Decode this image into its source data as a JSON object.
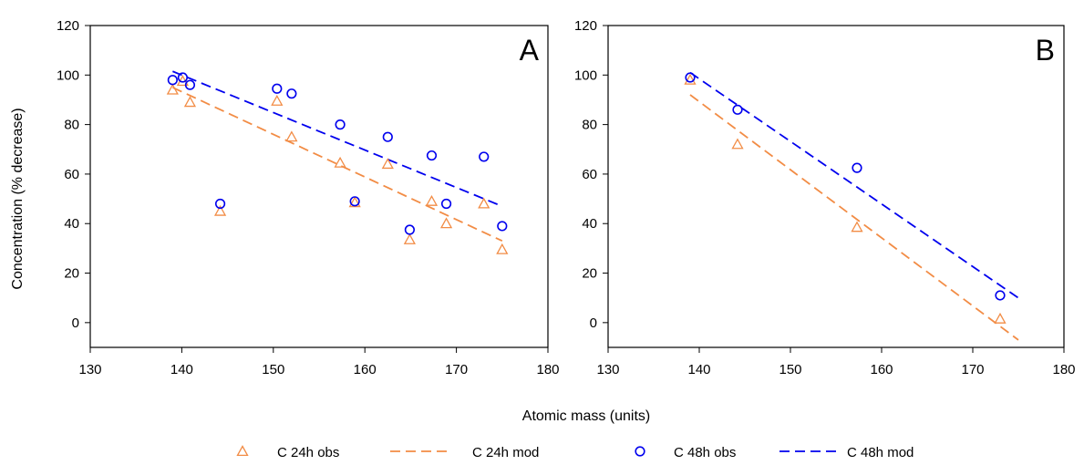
{
  "chart_data": [
    {
      "type": "scatter",
      "panel_label": "A",
      "xlim": [
        130,
        180
      ],
      "ylim": [
        -10,
        120
      ],
      "xticks": [
        130,
        140,
        150,
        160,
        170,
        180
      ],
      "yticks": [
        0,
        20,
        40,
        60,
        80,
        100,
        120
      ],
      "ylabel": "Concentration (% decrease)",
      "series": [
        {
          "name": "C 24h obs",
          "kind": "points",
          "marker": "triangle",
          "color": "#F28C45",
          "x": [
            139,
            140.1,
            140.9,
            144.2,
            150.4,
            152,
            157.3,
            158.9,
            162.5,
            164.9,
            167.3,
            168.9,
            173,
            175
          ],
          "y": [
            94,
            97.5,
            89,
            45,
            89.5,
            75,
            64.5,
            48.5,
            64,
            33.5,
            49,
            40,
            48,
            29.5
          ]
        },
        {
          "name": "C 24h mod",
          "kind": "line",
          "dash": "long",
          "color": "#F28C45",
          "x": [
            139,
            175
          ],
          "y": [
            95,
            33
          ]
        },
        {
          "name": "C 48h obs",
          "kind": "points",
          "marker": "circle",
          "color": "#0000EE",
          "x": [
            139,
            140.1,
            140.9,
            144.2,
            150.4,
            152,
            157.3,
            158.9,
            162.5,
            164.9,
            167.3,
            168.9,
            173,
            175
          ],
          "y": [
            98,
            99,
            96,
            48,
            94.5,
            92.5,
            80,
            49,
            75,
            37.5,
            67.5,
            48,
            67,
            39
          ]
        },
        {
          "name": "C 48h mod",
          "kind": "line",
          "dash": "long",
          "color": "#0000EE",
          "x": [
            139,
            175
          ],
          "y": [
            101.5,
            47
          ]
        }
      ]
    },
    {
      "type": "scatter",
      "panel_label": "B",
      "xlim": [
        130,
        180
      ],
      "ylim": [
        -10,
        120
      ],
      "xticks": [
        130,
        140,
        150,
        160,
        170,
        180
      ],
      "yticks": [
        0,
        20,
        40,
        60,
        80,
        100,
        120
      ],
      "series": [
        {
          "name": "C 24h obs",
          "kind": "points",
          "marker": "triangle",
          "color": "#F28C45",
          "x": [
            139,
            144.2,
            157.3,
            173
          ],
          "y": [
            98,
            72,
            38.5,
            1.5
          ]
        },
        {
          "name": "C 24h mod",
          "kind": "line",
          "dash": "long",
          "color": "#F28C45",
          "x": [
            139,
            175
          ],
          "y": [
            92,
            -7
          ]
        },
        {
          "name": "C 48h obs",
          "kind": "points",
          "marker": "circle",
          "color": "#0000EE",
          "x": [
            139,
            144.2,
            157.3,
            173
          ],
          "y": [
            99,
            86,
            62.5,
            11
          ]
        },
        {
          "name": "C 48h mod",
          "kind": "line",
          "dash": "long",
          "color": "#0000EE",
          "x": [
            139,
            175
          ],
          "y": [
            101,
            10
          ]
        }
      ]
    }
  ],
  "shared": {
    "xlabel": "Atomic mass (units)"
  },
  "legend": {
    "position": "bottom-center",
    "items": [
      {
        "label": "C 24h obs",
        "symbol": "triangle",
        "color": "#F28C45"
      },
      {
        "label": "C 24h mod",
        "symbol": "dashed-line",
        "color": "#F28C45"
      },
      {
        "label": "C 48h obs",
        "symbol": "circle",
        "color": "#0000EE"
      },
      {
        "label": "C 48h mod",
        "symbol": "dashed-line",
        "color": "#0000EE"
      }
    ]
  }
}
